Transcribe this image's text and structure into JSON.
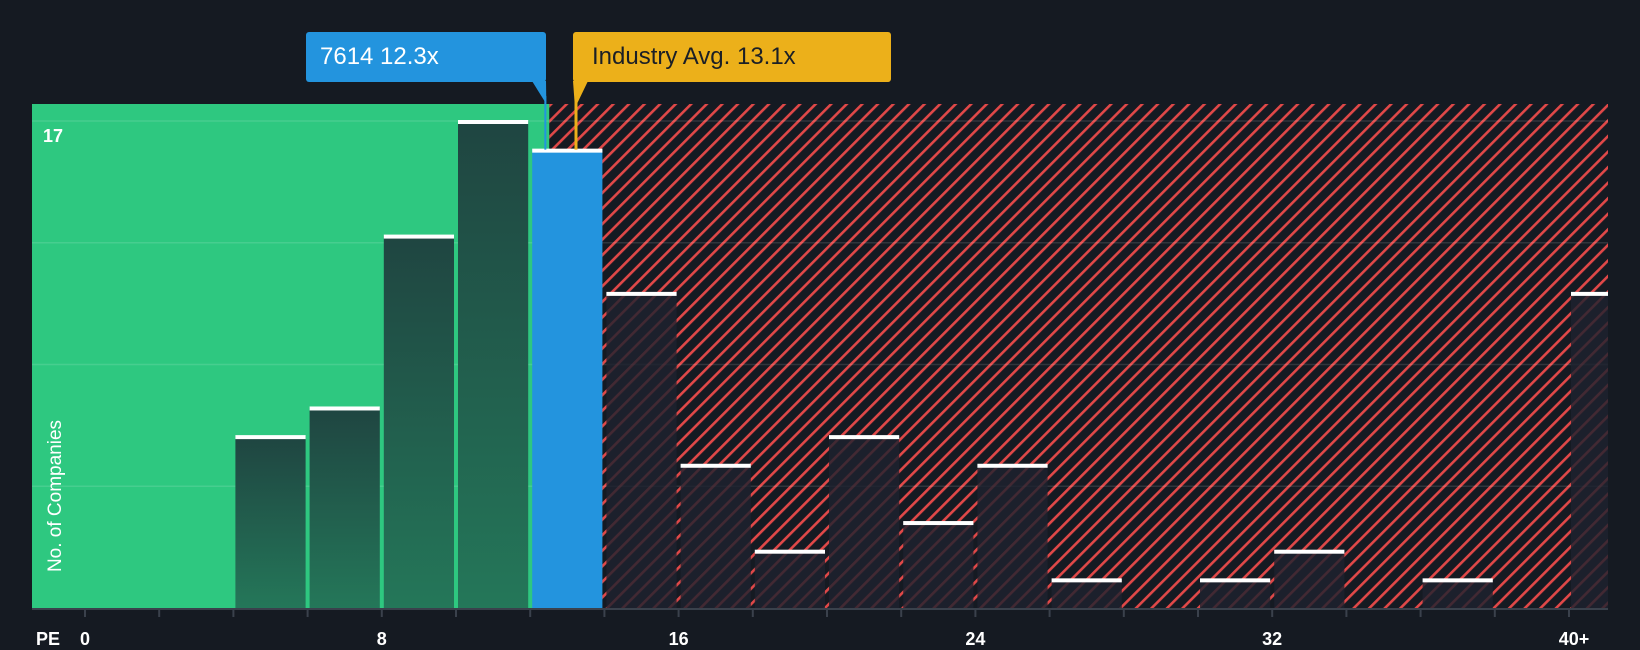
{
  "colors": {
    "background": "#151a22",
    "undervalued_zone": "#2ec880",
    "overvalued_hatch": "#e04848",
    "company_bar": "#2394de",
    "industry_marker": "#ecb01a",
    "bar_cap": "#ffffff",
    "axis": "#3a414c"
  },
  "callouts": {
    "company": "7614 12.3x",
    "industry": "Industry Avg. 13.1x"
  },
  "axes": {
    "x_prefix": "PE",
    "x_ticks": [
      "0",
      "8",
      "16",
      "24",
      "32",
      "40+"
    ],
    "y_max_label": "17",
    "y_title": "No. of Companies"
  },
  "chart_data": {
    "type": "bar",
    "title": "",
    "xlabel": "PE",
    "ylabel": "No. of Companies",
    "categories": [
      "0-2",
      "2-4",
      "4-6",
      "6-8",
      "8-10",
      "10-12",
      "12-14",
      "14-16",
      "16-18",
      "18-20",
      "20-22",
      "22-24",
      "24-26",
      "26-28",
      "28-30",
      "30-32",
      "32-34",
      "34-36",
      "36-38",
      "38-40",
      "40+"
    ],
    "values": [
      0,
      0,
      6,
      7,
      13,
      17,
      16,
      11,
      5,
      2,
      6,
      3,
      5,
      1,
      0,
      1,
      2,
      0,
      1,
      0,
      11
    ],
    "highlight_category": "12-14",
    "company_pe": 12.3,
    "company_ticker": "7614",
    "industry_avg_pe": 13.1,
    "x_tick_labels": [
      "0",
      "8",
      "16",
      "24",
      "32",
      "40+"
    ],
    "ylim": [
      0,
      17
    ],
    "grid": true,
    "zones": [
      {
        "name": "undervalued",
        "from": 0,
        "to": 12.3,
        "style": "solid green"
      },
      {
        "name": "overvalued",
        "from": 12.3,
        "to": "40+",
        "style": "red diagonal hatch"
      }
    ]
  }
}
